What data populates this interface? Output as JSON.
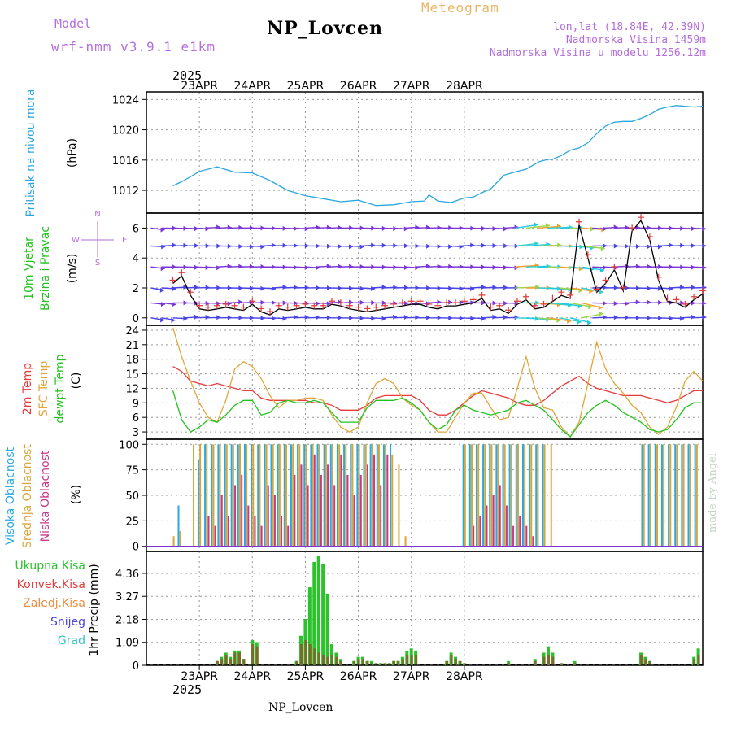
{
  "header": {
    "model_label": "Model",
    "model": "wrf-nmm_v3.9.1 e1km",
    "title": "NP_Lovcen",
    "meteogram": "Meteogram",
    "lonlat": "lon,lat (18.84E, 42.39N)",
    "altitude": "Nadmorska Visina 1459m",
    "altitude_model": "Nadmorska Visina u modelu 1256.12m",
    "year": "2025",
    "station_bottom": "NP_Lovcen",
    "made_by": "made by Angel"
  },
  "colors": {
    "pressure": "#2aa6e0",
    "wind_black": "#000000",
    "wind_red": "#e23b3b",
    "temp2m": "#e8393c",
    "sfc": "#e0a63a",
    "dewpt": "#22c21e",
    "cloud_high": "#2ba8e0",
    "cloud_mid": "#d9a63a",
    "cloud_low": "#c8398c",
    "precip_total": "#2cc22b",
    "precip_conv": "#e23b3b",
    "precip_snow": "#4a44d8",
    "precip_grad": "#30c2c2"
  },
  "chart_data": [
    {
      "type": "line",
      "name": "pressure",
      "ylabel": [
        "Pritisak na nivou mora",
        "(hPa)"
      ],
      "x_ticks": [
        "23APR",
        "24APR",
        "25APR",
        "26APR",
        "27APR",
        "28APR"
      ],
      "yticks": [
        1012,
        1016,
        1020,
        1024
      ],
      "ylim": [
        1009,
        1025
      ],
      "x_hours": [
        0,
        5,
        12,
        20,
        28,
        36,
        44,
        52,
        60,
        68,
        76,
        84,
        92,
        100,
        108,
        114,
        116,
        120,
        126,
        132,
        136,
        140,
        144,
        150,
        156,
        160,
        166,
        170,
        172,
        176,
        180,
        184,
        188,
        192,
        196,
        200,
        204,
        208,
        212,
        216,
        220,
        224,
        228,
        232,
        236,
        240
      ],
      "values": [
        1012.6,
        1013.3,
        1014.5,
        1015.1,
        1014.4,
        1014.3,
        1013.3,
        1012.0,
        1011.3,
        1010.9,
        1010.5,
        1010.7,
        1010.0,
        1010.1,
        1010.5,
        1010.6,
        1011.4,
        1010.6,
        1010.4,
        1011.0,
        1011.1,
        1011.7,
        1012.2,
        1014.0,
        1014.5,
        1014.8,
        1015.8,
        1016.1,
        1016.1,
        1016.6,
        1017.3,
        1017.6,
        1018.3,
        1019.5,
        1020.5,
        1021.0,
        1021.1,
        1021.1,
        1021.5,
        1022.0,
        1022.7,
        1023.0,
        1023.2,
        1023.1,
        1023.0,
        1023.1
      ]
    },
    {
      "type": "line",
      "name": "wind",
      "ylabel": [
        "10m Vjetar",
        "Brzina i Pravac",
        "(m/s)"
      ],
      "compass": {
        "n": "N",
        "s": "S",
        "w": "W",
        "e": "E"
      },
      "yticks": [
        0,
        2,
        4,
        6
      ],
      "ylim": [
        -0.5,
        7
      ],
      "barb_levels": [
        0,
        1,
        2,
        3.4,
        4.8,
        6
      ],
      "x_hours": [
        0,
        4,
        8,
        12,
        16,
        20,
        24,
        28,
        32,
        36,
        40,
        44,
        48,
        52,
        56,
        60,
        64,
        68,
        72,
        76,
        80,
        84,
        88,
        92,
        96,
        100,
        104,
        108,
        112,
        116,
        120,
        124,
        128,
        132,
        136,
        140,
        144,
        148,
        152,
        156,
        160,
        164,
        168,
        172,
        176,
        180,
        184,
        188,
        192,
        196,
        200,
        204,
        208,
        212,
        216,
        220,
        224,
        228,
        232,
        236,
        240
      ],
      "values": [
        2.3,
        2.8,
        1.5,
        0.6,
        0.5,
        0.6,
        0.7,
        0.6,
        0.5,
        0.9,
        0.4,
        0.2,
        0.6,
        0.5,
        0.6,
        0.7,
        0.6,
        0.6,
        0.9,
        0.8,
        0.6,
        0.5,
        0.4,
        0.5,
        0.6,
        0.7,
        0.8,
        0.9,
        0.9,
        0.7,
        0.6,
        0.8,
        0.8,
        0.9,
        1.0,
        1.3,
        0.5,
        0.6,
        0.3,
        0.9,
        1.2,
        0.6,
        0.7,
        1.1,
        1.5,
        1.3,
        6.2,
        4.0,
        1.7,
        2.3,
        3.2,
        1.8,
        5.8,
        6.5,
        5.2,
        2.5,
        1.1,
        1.0,
        0.7,
        1.2,
        1.6
      ]
    },
    {
      "type": "line",
      "name": "temperature",
      "ylabel": [
        "2m Temp",
        "SFC Temp",
        "dewpt Temp",
        "(C)"
      ],
      "yticks": [
        3,
        6,
        9,
        12,
        15,
        18,
        21,
        24
      ],
      "ylim": [
        1.5,
        25
      ],
      "x_hours": [
        0,
        4,
        8,
        12,
        16,
        20,
        24,
        28,
        32,
        36,
        40,
        44,
        48,
        52,
        56,
        60,
        64,
        68,
        72,
        76,
        80,
        84,
        88,
        92,
        96,
        100,
        104,
        108,
        112,
        116,
        120,
        124,
        128,
        132,
        136,
        140,
        144,
        148,
        152,
        156,
        160,
        164,
        168,
        172,
        176,
        180,
        184,
        188,
        192,
        196,
        200,
        204,
        208,
        212,
        216,
        220,
        224,
        228,
        232,
        236,
        240
      ],
      "series": [
        {
          "name": "2m Temp",
          "key": "temp2m",
          "values": [
            16.5,
            15.5,
            13.5,
            13.0,
            12.5,
            13.0,
            12.5,
            12.0,
            11.5,
            11.5,
            10.0,
            9.5,
            9.5,
            9.5,
            9.5,
            9.5,
            9.0,
            9.0,
            8.5,
            7.5,
            7.5,
            7.5,
            8.5,
            10.0,
            10.5,
            10.5,
            10.5,
            10.5,
            9.5,
            7.5,
            6.5,
            6.5,
            7.5,
            9.0,
            10.5,
            11.5,
            11.0,
            10.5,
            10.0,
            9.0,
            8.5,
            8.5,
            9.5,
            11.0,
            12.5,
            13.5,
            14.5,
            13.0,
            12.0,
            11.5,
            11.0,
            10.5,
            10.5,
            10.5,
            10.0,
            9.5,
            9.0,
            9.5,
            10.5,
            11.5,
            11.5
          ]
        },
        {
          "name": "SFC Temp",
          "key": "sfc",
          "values": [
            24.5,
            18.5,
            13.5,
            9.0,
            6.0,
            5.0,
            9.5,
            16.0,
            17.5,
            16.5,
            14.0,
            10.5,
            8.0,
            9.5,
            9.5,
            10.0,
            10.0,
            9.5,
            6.5,
            4.0,
            3.0,
            4.0,
            9.0,
            13.0,
            14.0,
            13.0,
            10.0,
            8.5,
            7.5,
            5.0,
            3.0,
            3.0,
            6.0,
            9.0,
            11.0,
            11.0,
            8.0,
            5.5,
            6.0,
            12.0,
            18.5,
            12.0,
            8.0,
            7.5,
            4.0,
            2.0,
            5.0,
            13.0,
            21.5,
            16.0,
            13.0,
            11.0,
            8.5,
            7.0,
            4.0,
            2.5,
            4.0,
            8.0,
            13.5,
            15.5,
            13.5
          ]
        },
        {
          "name": "dewpt Temp",
          "key": "dewpt",
          "values": [
            11.5,
            5.5,
            3.0,
            4.0,
            5.5,
            5.0,
            6.5,
            8.5,
            9.5,
            9.5,
            6.5,
            7.0,
            9.0,
            9.5,
            9.0,
            9.0,
            9.5,
            9.0,
            7.0,
            5.0,
            5.0,
            5.0,
            8.0,
            9.5,
            9.5,
            9.5,
            10.0,
            9.0,
            7.5,
            5.0,
            3.5,
            4.5,
            7.5,
            8.5,
            7.5,
            7.0,
            6.5,
            7.0,
            7.5,
            9.0,
            9.5,
            8.5,
            7.5,
            5.5,
            3.5,
            2.0,
            4.5,
            7.0,
            8.5,
            9.5,
            8.5,
            7.0,
            6.0,
            5.0,
            3.5,
            3.0,
            3.5,
            5.5,
            8.0,
            9.0,
            9.0
          ]
        }
      ]
    },
    {
      "type": "bar",
      "name": "clouds",
      "ylabel": [
        "Visoka Oblacnost",
        "Srednja Oblacnost",
        "Niska Oblacnost",
        "(%)"
      ],
      "yticks": [
        0,
        25,
        50,
        75,
        100
      ],
      "ylim": [
        -5,
        105
      ],
      "x_hours": [
        0,
        3,
        6,
        9,
        12,
        15,
        18,
        21,
        24,
        27,
        30,
        33,
        36,
        39,
        42,
        45,
        48,
        51,
        54,
        57,
        60,
        63,
        66,
        69,
        72,
        75,
        78,
        81,
        84,
        87,
        90,
        93,
        96,
        99,
        102,
        105,
        108,
        111,
        114,
        117,
        120,
        123,
        126,
        129,
        132,
        135,
        138,
        141,
        144,
        147,
        150,
        153,
        156,
        159,
        162,
        165,
        168,
        171,
        174,
        177,
        180,
        183,
        186,
        189,
        192,
        195,
        198,
        201,
        204,
        207,
        210,
        213,
        216,
        219,
        222,
        225,
        228,
        231,
        234,
        237
      ],
      "series": [
        {
          "name": "Visoka Oblacnost",
          "key": "cloud_high",
          "values": [
            0,
            40,
            0,
            0,
            85,
            100,
            100,
            100,
            100,
            100,
            100,
            100,
            100,
            100,
            100,
            100,
            100,
            100,
            100,
            100,
            100,
            100,
            100,
            100,
            100,
            100,
            100,
            100,
            100,
            100,
            100,
            100,
            100,
            100,
            0,
            0,
            0,
            0,
            0,
            0,
            0,
            0,
            0,
            0,
            100,
            100,
            100,
            100,
            100,
            100,
            100,
            100,
            100,
            100,
            100,
            100,
            100,
            0,
            0,
            0,
            0,
            0,
            0,
            0,
            0,
            0,
            0,
            0,
            0,
            0,
            0,
            100,
            100,
            100,
            100,
            100,
            100,
            100,
            100,
            100
          ]
        },
        {
          "name": "Srednja Oblacnost",
          "key": "cloud_mid",
          "values": [
            10,
            15,
            0,
            100,
            100,
            100,
            100,
            100,
            100,
            100,
            100,
            100,
            100,
            100,
            100,
            100,
            100,
            100,
            100,
            100,
            100,
            100,
            100,
            100,
            100,
            100,
            100,
            100,
            100,
            100,
            100,
            100,
            100,
            90,
            80,
            10,
            0,
            0,
            0,
            0,
            0,
            0,
            0,
            0,
            100,
            100,
            100,
            100,
            100,
            100,
            100,
            100,
            100,
            100,
            100,
            100,
            100,
            100,
            0,
            0,
            0,
            0,
            0,
            0,
            0,
            0,
            0,
            0,
            0,
            0,
            0,
            100,
            100,
            100,
            100,
            100,
            100,
            100,
            100,
            100
          ]
        },
        {
          "name": "Niska Oblacnost",
          "key": "cloud_low",
          "values": [
            0,
            0,
            0,
            0,
            0,
            30,
            20,
            50,
            30,
            60,
            70,
            40,
            30,
            20,
            60,
            50,
            30,
            20,
            70,
            80,
            60,
            90,
            70,
            80,
            60,
            90,
            70,
            50,
            70,
            80,
            90,
            60,
            90,
            0,
            0,
            0,
            0,
            0,
            0,
            0,
            0,
            0,
            0,
            0,
            0,
            20,
            30,
            40,
            50,
            60,
            40,
            20,
            30,
            20,
            10,
            0,
            0,
            0,
            0,
            0,
            0,
            0,
            0,
            0,
            0,
            0,
            0,
            0,
            0,
            0,
            0,
            0,
            0,
            0,
            0,
            0,
            0,
            0,
            0,
            0
          ]
        }
      ]
    },
    {
      "type": "bar",
      "name": "precipitation",
      "ylabel": [
        "1hr Precip (mm)"
      ],
      "legend": [
        "Ukupna Kisa",
        "Konvek.Kisa",
        "Zaledj.Kisa",
        "Snijeg",
        "Grad"
      ],
      "yticks": [
        0,
        1.09,
        2.18,
        3.27,
        4.36
      ],
      "ylim": [
        0,
        5.4
      ],
      "x_ticks": [
        "23APR",
        "24APR",
        "25APR",
        "26APR",
        "27APR",
        "28APR"
      ],
      "x_hours": [
        20,
        22,
        24,
        26,
        28,
        30,
        32,
        34,
        36,
        38,
        56,
        58,
        60,
        62,
        64,
        66,
        68,
        70,
        72,
        74,
        76,
        82,
        84,
        86,
        88,
        90,
        92,
        94,
        96,
        98,
        100,
        102,
        104,
        106,
        108,
        110,
        124,
        126,
        128,
        130,
        132,
        152,
        164,
        168,
        170,
        172,
        176,
        182,
        212,
        214,
        216,
        236,
        238
      ],
      "series": [
        {
          "name": "Ukupna Kisa",
          "key": "precip_total",
          "values": [
            0.2,
            0.4,
            0.6,
            0.4,
            0.7,
            0.7,
            0.3,
            0.0,
            1.2,
            1.1,
            0.2,
            1.4,
            2.2,
            3.7,
            4.9,
            5.2,
            4.8,
            3.4,
            1.0,
            0.6,
            0.3,
            0.2,
            0.4,
            0.4,
            0.2,
            0.2,
            0.1,
            0.1,
            0.1,
            0.1,
            0.2,
            0.2,
            0.4,
            0.7,
            0.8,
            0.7,
            0.2,
            0.6,
            0.4,
            0.2,
            0.1,
            0.2,
            0.3,
            0.6,
            0.9,
            0.6,
            0.1,
            0.2,
            0.6,
            0.4,
            0.2,
            0.4,
            0.8
          ]
        },
        {
          "name": "Konvek.Kisa",
          "key": "precip_conv",
          "values": [
            0.2,
            0.3,
            0.5,
            0.3,
            0.6,
            0.6,
            0.3,
            0.0,
            1.0,
            0.9,
            0.2,
            1.0,
            1.2,
            1.0,
            0.8,
            0.6,
            0.5,
            0.4,
            0.5,
            0.4,
            0.2,
            0.2,
            0.3,
            0.3,
            0.2,
            0.1,
            0.1,
            0.1,
            0.1,
            0.1,
            0.2,
            0.2,
            0.3,
            0.5,
            0.5,
            0.5,
            0.2,
            0.5,
            0.3,
            0.2,
            0.1,
            0.1,
            0.2,
            0.4,
            0.5,
            0.4,
            0.1,
            0.1,
            0.5,
            0.3,
            0.2,
            0.3,
            0.5
          ]
        }
      ]
    }
  ]
}
